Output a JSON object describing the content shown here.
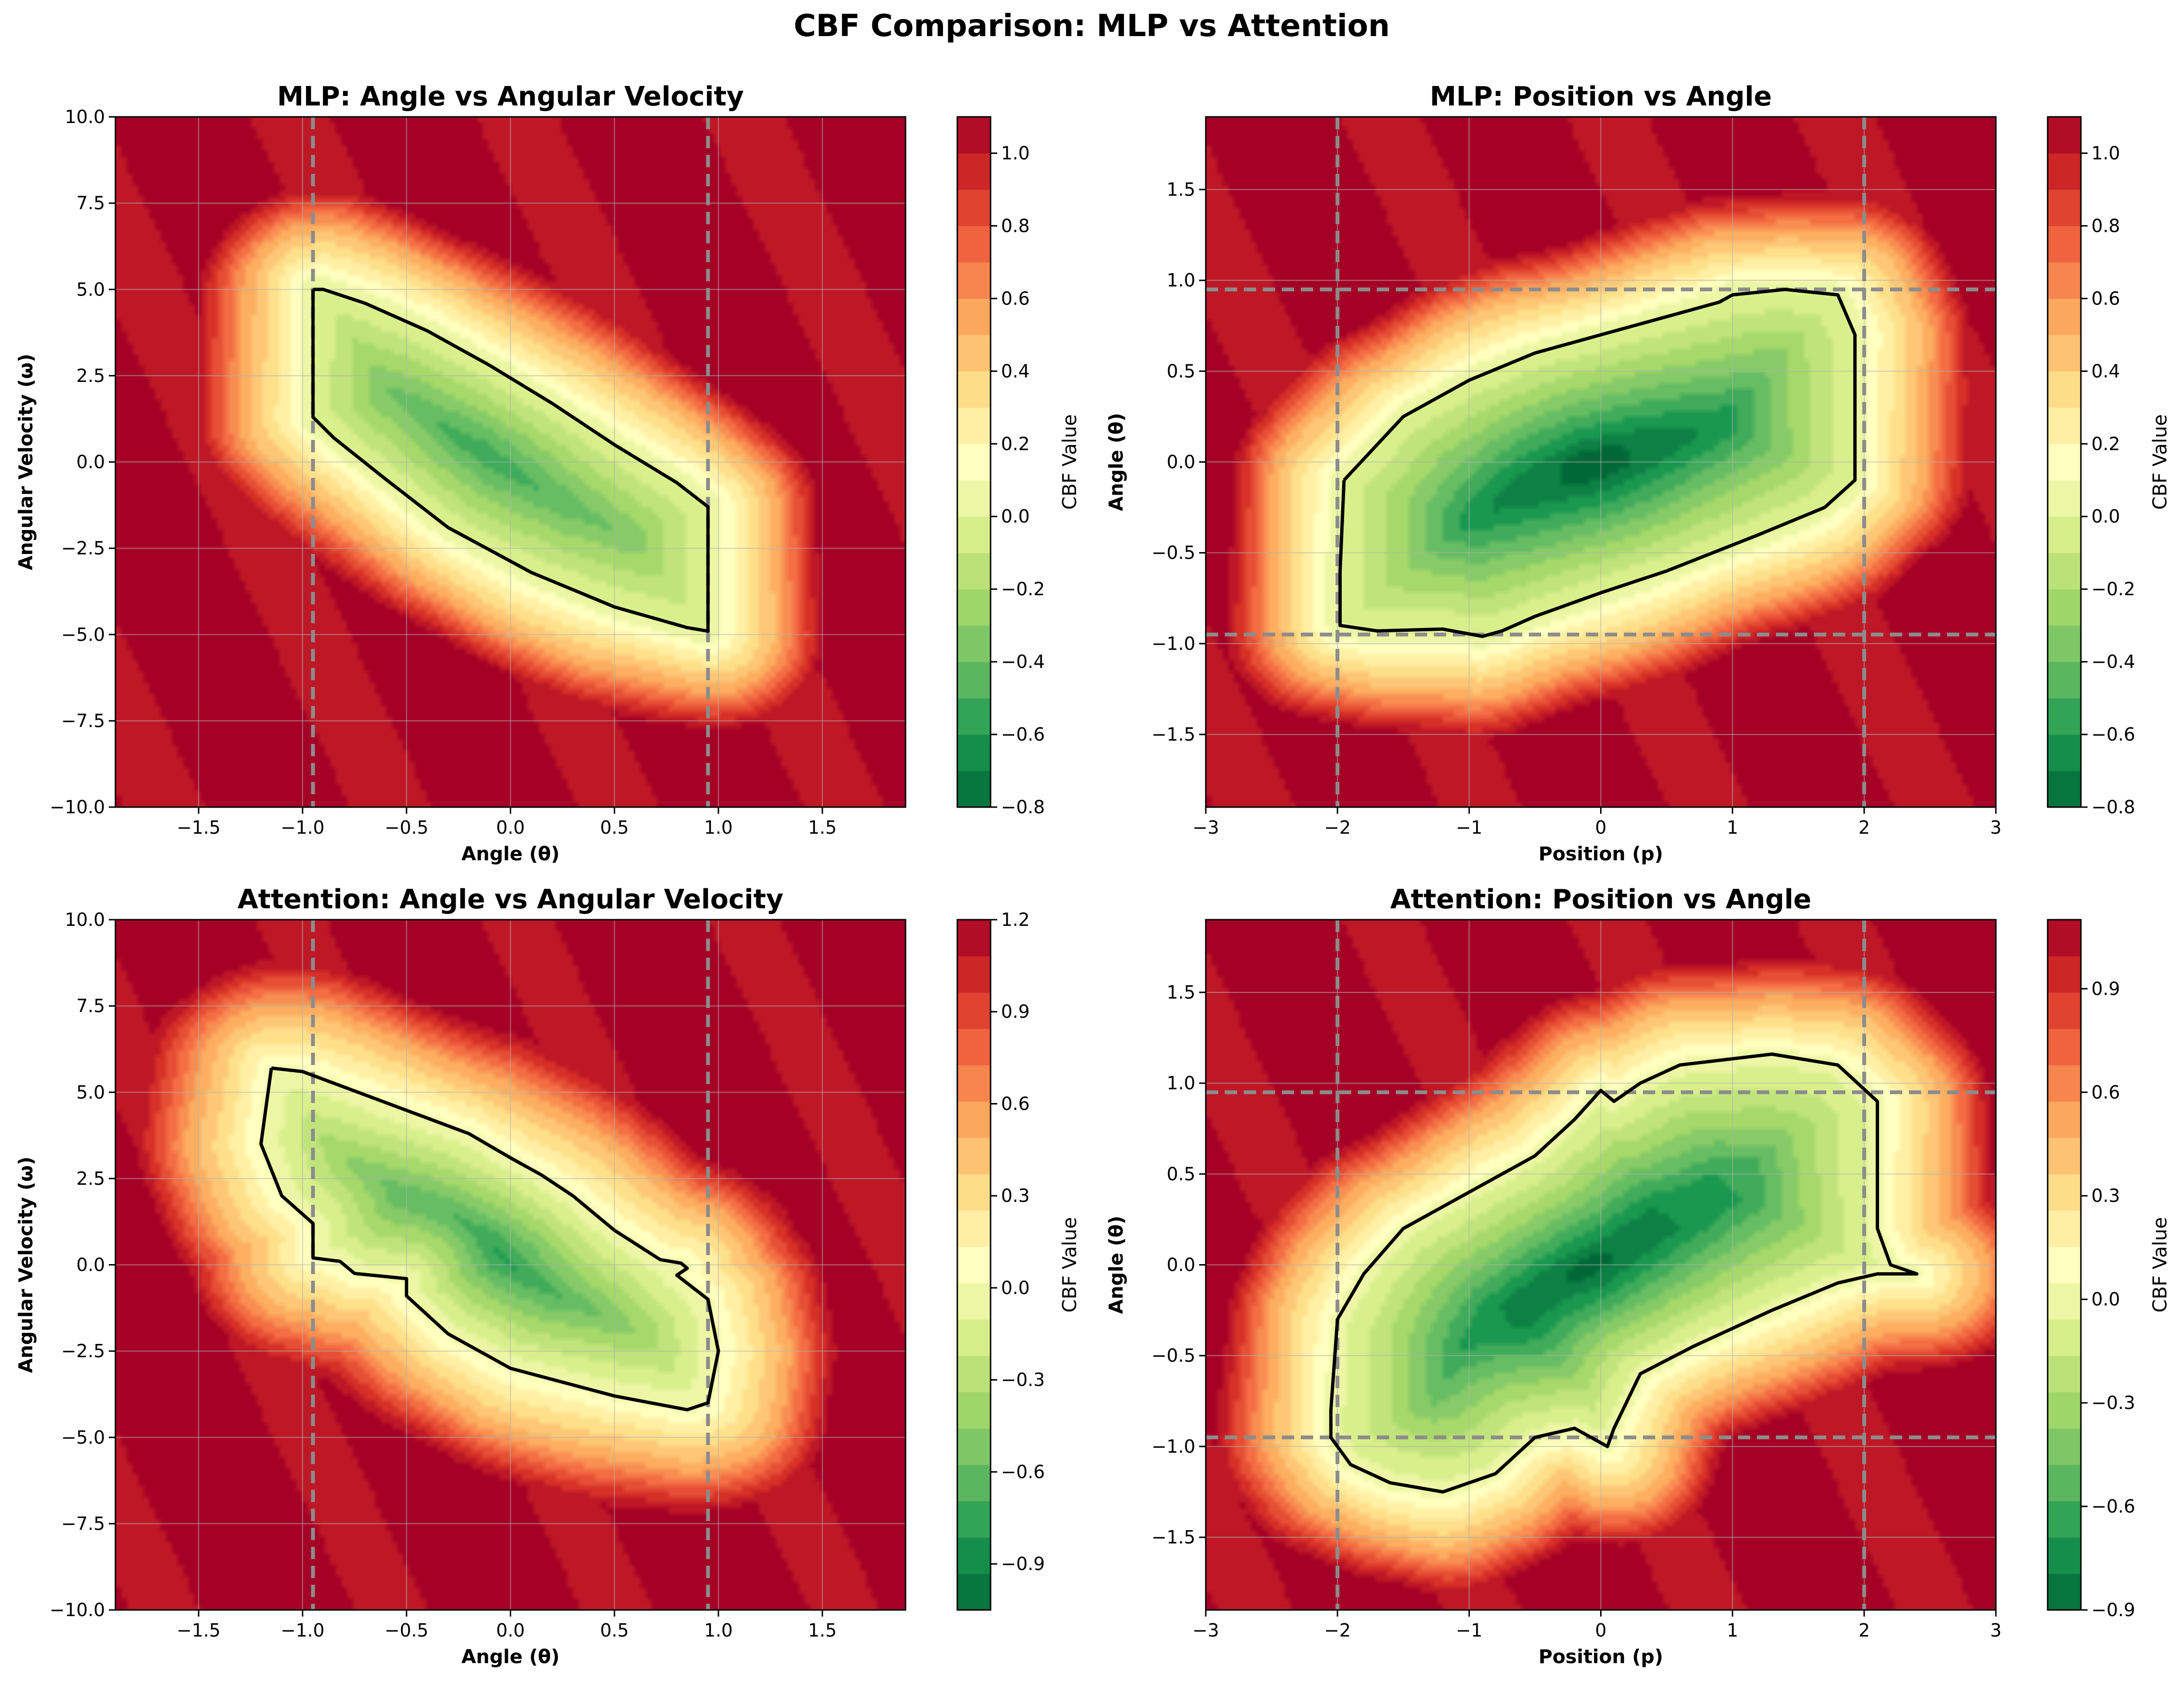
{
  "figure": {
    "title": "CBF Comparison: MLP vs Attention"
  },
  "colors": {
    "colormap": [
      "#006837",
      "#1a9850",
      "#66bd63",
      "#a6d96a",
      "#d9ef8b",
      "#ffffbf",
      "#fee08b",
      "#fdae61",
      "#f46d43",
      "#d73027",
      "#a50026"
    ],
    "boundary": "#000000",
    "limit_lines": "#8c8c8c"
  },
  "chart_data": [
    {
      "id": "p1",
      "type": "heatmap",
      "title": "MLP: Angle vs Angular Velocity",
      "xlabel": "Angle (θ)",
      "ylabel": "Angular Velocity (ω)",
      "xlim": [
        -1.9,
        1.9
      ],
      "ylim": [
        -10,
        10
      ],
      "xticks": [
        -1.5,
        -1.0,
        -0.5,
        0.0,
        0.5,
        1.0,
        1.5
      ],
      "xtick_labels": [
        "−1.5",
        "−1.0",
        "−0.5",
        "0.0",
        "0.5",
        "1.0",
        "1.5"
      ],
      "yticks": [
        -10,
        -7.5,
        -5,
        -2.5,
        0,
        2.5,
        5,
        7.5,
        10
      ],
      "ytick_labels": [
        "−10.0",
        "−7.5",
        "−5.0",
        "−2.5",
        "0.0",
        "2.5",
        "5.0",
        "7.5",
        "10.0"
      ],
      "limit_lines": {
        "vertical": [
          -0.95,
          0.95
        ],
        "horizontal": []
      },
      "colorbar": {
        "label": "CBF Value",
        "range": [
          -0.8,
          1.1
        ],
        "ticks": [
          -0.8,
          -0.6,
          -0.4,
          -0.2,
          0.0,
          0.2,
          0.4,
          0.6,
          0.8,
          1.0
        ],
        "tick_labels": [
          "−0.8",
          "−0.6",
          "−0.4",
          "−0.2",
          "0.0",
          "0.2",
          "0.4",
          "0.6",
          "0.8",
          "1.0"
        ]
      },
      "grid": true,
      "field": {
        "kind": "band",
        "min": -0.8,
        "max": 1.1,
        "slope": -5.3,
        "core_halfwidth": 0.95,
        "core_omega_halfwidth": 4.6
      },
      "zero_boundary": [
        [
          -0.95,
          5.0
        ],
        [
          -0.9,
          5.0
        ],
        [
          -0.7,
          4.6
        ],
        [
          -0.4,
          3.8
        ],
        [
          -0.1,
          2.8
        ],
        [
          0.2,
          1.7
        ],
        [
          0.5,
          0.5
        ],
        [
          0.8,
          -0.6
        ],
        [
          0.95,
          -1.3
        ],
        [
          0.95,
          -4.9
        ],
        [
          0.85,
          -4.8
        ],
        [
          0.5,
          -4.2
        ],
        [
          0.1,
          -3.2
        ],
        [
          -0.3,
          -1.9
        ],
        [
          -0.6,
          -0.5
        ],
        [
          -0.85,
          0.7
        ],
        [
          -0.95,
          1.3
        ],
        [
          -0.95,
          5.0
        ]
      ]
    },
    {
      "id": "p2",
      "type": "heatmap",
      "title": "MLP: Position vs Angle",
      "xlabel": "Position (p)",
      "ylabel": "Angle (θ)",
      "xlim": [
        -3,
        3
      ],
      "ylim": [
        -1.9,
        1.9
      ],
      "xticks": [
        -3,
        -2,
        -1,
        0,
        1,
        2,
        3
      ],
      "xtick_labels": [
        "−3",
        "−2",
        "−1",
        "0",
        "1",
        "2",
        "3"
      ],
      "yticks": [
        -1.5,
        -1.0,
        -0.5,
        0.0,
        0.5,
        1.0,
        1.5
      ],
      "ytick_labels": [
        "−1.5",
        "−1.0",
        "−0.5",
        "0.0",
        "0.5",
        "1.0",
        "1.5"
      ],
      "limit_lines": {
        "vertical": [
          -2,
          2
        ],
        "horizontal": [
          -0.95,
          0.95
        ]
      },
      "colorbar": {
        "label": "CBF Value",
        "range": [
          -0.8,
          1.1
        ],
        "ticks": [
          -0.8,
          -0.6,
          -0.4,
          -0.2,
          0.0,
          0.2,
          0.4,
          0.6,
          0.8,
          1.0
        ],
        "tick_labels": [
          "−0.8",
          "−0.6",
          "−0.4",
          "−0.2",
          "0.0",
          "0.2",
          "0.4",
          "0.6",
          "0.8",
          "1.0"
        ]
      },
      "grid": true,
      "field": {
        "kind": "blob",
        "min": -0.8,
        "max": 1.1,
        "tilt": 0.18
      },
      "zero_boundary": [
        [
          -1.95,
          -0.1
        ],
        [
          -1.5,
          0.25
        ],
        [
          -1.0,
          0.45
        ],
        [
          -0.5,
          0.6
        ],
        [
          0.0,
          0.7
        ],
        [
          0.5,
          0.8
        ],
        [
          0.9,
          0.88
        ],
        [
          1.0,
          0.92
        ],
        [
          1.4,
          0.95
        ],
        [
          1.8,
          0.92
        ],
        [
          1.93,
          0.7
        ],
        [
          1.93,
          0.3
        ],
        [
          1.93,
          -0.1
        ],
        [
          1.7,
          -0.25
        ],
        [
          1.2,
          -0.4
        ],
        [
          0.5,
          -0.6
        ],
        [
          0.0,
          -0.72
        ],
        [
          -0.5,
          -0.85
        ],
        [
          -0.75,
          -0.93
        ],
        [
          -0.9,
          -0.96
        ],
        [
          -1.2,
          -0.92
        ],
        [
          -1.7,
          -0.93
        ],
        [
          -1.98,
          -0.9
        ],
        [
          -1.98,
          -0.6
        ],
        [
          -1.95,
          -0.1
        ]
      ]
    },
    {
      "id": "p3",
      "type": "heatmap",
      "title": "Attention: Angle vs Angular Velocity",
      "xlabel": "Angle (θ)",
      "ylabel": "Angular Velocity (ω)",
      "xlim": [
        -1.9,
        1.9
      ],
      "ylim": [
        -10,
        10
      ],
      "xticks": [
        -1.5,
        -1.0,
        -0.5,
        0.0,
        0.5,
        1.0,
        1.5
      ],
      "xtick_labels": [
        "−1.5",
        "−1.0",
        "−0.5",
        "0.0",
        "0.5",
        "1.0",
        "1.5"
      ],
      "yticks": [
        -10,
        -7.5,
        -5,
        -2.5,
        0,
        2.5,
        5,
        7.5,
        10
      ],
      "ytick_labels": [
        "−10.0",
        "−7.5",
        "−5.0",
        "−2.5",
        "0.0",
        "2.5",
        "5.0",
        "7.5",
        "10.0"
      ],
      "limit_lines": {
        "vertical": [
          -0.95,
          0.95
        ],
        "horizontal": []
      },
      "colorbar": {
        "label": "CBF Value",
        "range": [
          -1.05,
          1.2
        ],
        "ticks": [
          -0.9,
          -0.6,
          -0.3,
          0.0,
          0.3,
          0.6,
          0.9,
          1.2
        ],
        "tick_labels": [
          "−0.9",
          "−0.6",
          "−0.3",
          "0.0",
          "0.3",
          "0.6",
          "0.9",
          "1.2"
        ]
      },
      "grid": true,
      "field": {
        "kind": "band",
        "min": -1.05,
        "max": 1.2,
        "slope": -4.2,
        "core_halfwidth": 0.9,
        "core_omega_halfwidth": 4.0
      },
      "zero_boundary": [
        [
          -1.15,
          5.7
        ],
        [
          -1.0,
          5.6
        ],
        [
          -0.6,
          4.7
        ],
        [
          -0.2,
          3.8
        ],
        [
          0.0,
          3.1
        ],
        [
          0.15,
          2.6
        ],
        [
          0.3,
          2.0
        ],
        [
          0.5,
          1.0
        ],
        [
          0.72,
          0.15
        ],
        [
          0.82,
          0.05
        ],
        [
          0.85,
          -0.1
        ],
        [
          0.8,
          -0.3
        ],
        [
          0.95,
          -1.0
        ],
        [
          1.0,
          -2.5
        ],
        [
          0.95,
          -4.0
        ],
        [
          0.85,
          -4.2
        ],
        [
          0.5,
          -3.8
        ],
        [
          0.0,
          -3.0
        ],
        [
          -0.3,
          -2.0
        ],
        [
          -0.5,
          -0.9
        ],
        [
          -0.5,
          -0.4
        ],
        [
          -0.75,
          -0.25
        ],
        [
          -0.82,
          0.1
        ],
        [
          -0.95,
          0.2
        ],
        [
          -0.95,
          1.2
        ],
        [
          -1.1,
          2.0
        ],
        [
          -1.2,
          3.5
        ],
        [
          -1.15,
          5.7
        ]
      ]
    },
    {
      "id": "p4",
      "type": "heatmap",
      "title": "Attention: Position vs Angle",
      "xlabel": "Position (p)",
      "ylabel": "Angle (θ)",
      "xlim": [
        -3,
        3
      ],
      "ylim": [
        -1.9,
        1.9
      ],
      "xticks": [
        -3,
        -2,
        -1,
        0,
        1,
        2,
        3
      ],
      "xtick_labels": [
        "−3",
        "−2",
        "−1",
        "0",
        "1",
        "2",
        "3"
      ],
      "yticks": [
        -1.5,
        -1.0,
        -0.5,
        0.0,
        0.5,
        1.0,
        1.5
      ],
      "ytick_labels": [
        "−1.5",
        "−1.0",
        "−0.5",
        "0.0",
        "0.5",
        "1.0",
        "1.5"
      ],
      "limit_lines": {
        "vertical": [
          -2,
          2
        ],
        "horizontal": [
          -0.95,
          0.95
        ]
      },
      "colorbar": {
        "label": "CBF Value",
        "range": [
          -0.9,
          1.1
        ],
        "ticks": [
          -0.9,
          -0.6,
          -0.3,
          0.0,
          0.3,
          0.6,
          0.9
        ],
        "tick_labels": [
          "−0.9",
          "−0.6",
          "−0.3",
          "0.0",
          "0.3",
          "0.6",
          "0.9"
        ]
      },
      "grid": true,
      "field": {
        "kind": "blob",
        "min": -0.9,
        "max": 1.1,
        "tilt": 0.1
      },
      "zero_boundary": [
        [
          -2.05,
          -0.8
        ],
        [
          -2.0,
          -0.3
        ],
        [
          -1.8,
          -0.05
        ],
        [
          -1.5,
          0.2
        ],
        [
          -1.0,
          0.4
        ],
        [
          -0.5,
          0.6
        ],
        [
          -0.2,
          0.8
        ],
        [
          0.0,
          0.96
        ],
        [
          0.1,
          0.9
        ],
        [
          0.3,
          1.0
        ],
        [
          0.6,
          1.1
        ],
        [
          1.3,
          1.16
        ],
        [
          1.8,
          1.1
        ],
        [
          2.1,
          0.9
        ],
        [
          2.1,
          0.2
        ],
        [
          2.2,
          0.0
        ],
        [
          2.4,
          -0.05
        ],
        [
          2.1,
          -0.05
        ],
        [
          1.8,
          -0.1
        ],
        [
          1.3,
          -0.25
        ],
        [
          0.7,
          -0.45
        ],
        [
          0.3,
          -0.6
        ],
        [
          0.1,
          -0.9
        ],
        [
          0.05,
          -1.0
        ],
        [
          -0.2,
          -0.9
        ],
        [
          -0.5,
          -0.95
        ],
        [
          -0.8,
          -1.15
        ],
        [
          -1.2,
          -1.25
        ],
        [
          -1.6,
          -1.2
        ],
        [
          -1.9,
          -1.1
        ],
        [
          -2.05,
          -0.95
        ],
        [
          -2.05,
          -0.8
        ]
      ]
    }
  ]
}
